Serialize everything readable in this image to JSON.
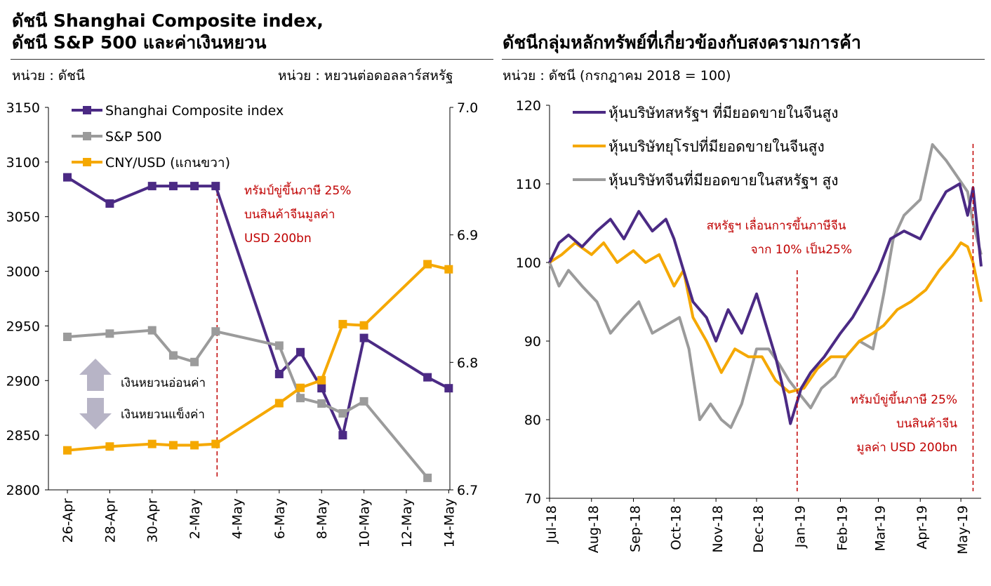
{
  "left_panel": {
    "title_line1": "ดัชนี Shanghai Composite index,",
    "title_line2": "ดัชนี S&P 500 และค่าเงินหยวน",
    "unit_left": "หน่วย : ดัชนี",
    "unit_right": "หน่วย : หยวนต่อดอลลาร์สหรัฐ",
    "annotation_lines": [
      "ทรัมป์ขู่ขึ้นภาษี 25%",
      "บนสินค้าจีนมูลค่า",
      "USD 200bn"
    ],
    "weaken_label": "เงินหยวนอ่อนค่า",
    "strengthen_label": "เงินหยวนแข็งค่า"
  },
  "right_panel": {
    "title": "ดัชนีกลุ่มหลักทรัพย์ที่เกี่ยวข้องกับสงครามการค้า",
    "unit": "หน่วย : ดัชนี (กรกฎาคม 2018 = 100)",
    "annotation1_lines": [
      "สหรัฐฯ เลื่อนการขึ้นภาษีจีน",
      "จาก 10% เป็น25%"
    ],
    "annotation2_lines": [
      "ทรัมป์ขู่ขึ้นภาษี 25%",
      "บนสินค้าจีน",
      "มูลค่า USD 200bn"
    ]
  },
  "colors": {
    "purple": "#4b2a84",
    "gray": "#9b9b9b",
    "orange": "#f5a800",
    "annotation_red": "#c00000",
    "arrow_gray": "#b7b4c6"
  },
  "chart_data": [
    {
      "type": "line",
      "categories": [
        "26-Apr",
        "27-Apr",
        "28-Apr",
        "29-Apr",
        "30-Apr",
        "1-May",
        "2-May",
        "3-May",
        "4-May",
        "5-May",
        "6-May",
        "7-May",
        "8-May",
        "9-May",
        "10-May",
        "11-May",
        "12-May",
        "13-May",
        "14-May"
      ],
      "x_tick_labels": [
        "26-Apr",
        "28-Apr",
        "30-Apr",
        "2-May",
        "4-May",
        "6-May",
        "8-May",
        "10-May",
        "12-May",
        "14-May"
      ],
      "ylim": [
        2800,
        3150
      ],
      "y_ticks": [
        2800,
        2850,
        2900,
        2950,
        3000,
        3050,
        3100,
        3150
      ],
      "y2lim": [
        6.7,
        7.0
      ],
      "y2_ticks": [
        "6.7",
        "6.8",
        "6.9",
        "7.0"
      ],
      "legend_position": "top-left",
      "series": [
        {
          "name": "Shanghai Composite index",
          "axis": "left",
          "color": "#4b2a84",
          "points": [
            [
              "26-Apr",
              3086
            ],
            [
              "28-Apr",
              3062
            ],
            [
              "30-Apr",
              3078
            ],
            [
              "1-May",
              3078
            ],
            [
              "2-May",
              3078
            ],
            [
              "3-May",
              3078
            ],
            [
              "6-May",
              2906
            ],
            [
              "7-May",
              2926
            ],
            [
              "8-May",
              2893
            ],
            [
              "9-May",
              2850
            ],
            [
              "10-May",
              2939
            ],
            [
              "13-May",
              2903
            ],
            [
              "14-May",
              2893
            ]
          ]
        },
        {
          "name": "S&P 500",
          "axis": "left",
          "color": "#9b9b9b",
          "points": [
            [
              "26-Apr",
              2940
            ],
            [
              "28-Apr",
              2943
            ],
            [
              "30-Apr",
              2946
            ],
            [
              "1-May",
              2923
            ],
            [
              "2-May",
              2917
            ],
            [
              "3-May",
              2945
            ],
            [
              "6-May",
              2932
            ],
            [
              "7-May",
              2884
            ],
            [
              "8-May",
              2879
            ],
            [
              "9-May",
              2870
            ],
            [
              "10-May",
              2881
            ],
            [
              "13-May",
              2811
            ]
          ]
        },
        {
          "name": "CNY/USD (แกนขวา)",
          "axis": "right",
          "color": "#f5a800",
          "points": [
            [
              "26-Apr",
              6.731
            ],
            [
              "28-Apr",
              6.734
            ],
            [
              "30-Apr",
              6.736
            ],
            [
              "1-May",
              6.735
            ],
            [
              "2-May",
              6.735
            ],
            [
              "3-May",
              6.736
            ],
            [
              "6-May",
              6.768
            ],
            [
              "7-May",
              6.78
            ],
            [
              "8-May",
              6.786
            ],
            [
              "9-May",
              6.83
            ],
            [
              "10-May",
              6.829
            ],
            [
              "13-May",
              6.877
            ],
            [
              "14-May",
              6.873
            ]
          ]
        }
      ],
      "event_marker": "3-May"
    },
    {
      "type": "line",
      "x_tick_labels": [
        "Jul-18",
        "Aug-18",
        "Sep-18",
        "Oct-18",
        "Nov-18",
        "Dec-18",
        "Jan-19",
        "Feb-19",
        "Mar-19",
        "Apr-19",
        "May-19"
      ],
      "x_range": [
        "2018-07-01",
        "2019-05-16"
      ],
      "ylim": [
        70,
        120
      ],
      "y_ticks": [
        70,
        80,
        90,
        100,
        110,
        120
      ],
      "legend_position": "top-left",
      "series": [
        {
          "name": "หุ้นบริษัทสหรัฐฯ ที่มียอดขายในจีนสูง",
          "color": "#4b2a84",
          "points": [
            [
              "2018-07-01",
              100
            ],
            [
              "2018-07-08",
              102.5
            ],
            [
              "2018-07-15",
              103.5
            ],
            [
              "2018-07-25",
              102
            ],
            [
              "2018-08-05",
              104
            ],
            [
              "2018-08-15",
              105.5
            ],
            [
              "2018-08-25",
              103
            ],
            [
              "2018-09-05",
              106.5
            ],
            [
              "2018-09-15",
              104
            ],
            [
              "2018-09-25",
              105.5
            ],
            [
              "2018-10-01",
              103
            ],
            [
              "2018-10-08",
              99
            ],
            [
              "2018-10-15",
              95
            ],
            [
              "2018-10-25",
              93
            ],
            [
              "2018-11-01",
              90
            ],
            [
              "2018-11-10",
              94
            ],
            [
              "2018-11-20",
              91
            ],
            [
              "2018-12-01",
              96
            ],
            [
              "2018-12-08",
              92
            ],
            [
              "2018-12-15",
              88
            ],
            [
              "2018-12-22",
              83
            ],
            [
              "2018-12-26",
              79.5
            ],
            [
              "2019-01-03",
              84
            ],
            [
              "2019-01-10",
              86
            ],
            [
              "2019-01-20",
              88
            ],
            [
              "2019-02-01",
              91
            ],
            [
              "2019-02-10",
              93
            ],
            [
              "2019-02-20",
              96
            ],
            [
              "2019-03-01",
              99
            ],
            [
              "2019-03-10",
              103
            ],
            [
              "2019-03-20",
              104
            ],
            [
              "2019-04-01",
              103
            ],
            [
              "2019-04-10",
              106
            ],
            [
              "2019-04-20",
              109
            ],
            [
              "2019-04-30",
              110
            ],
            [
              "2019-05-06",
              106
            ],
            [
              "2019-05-10",
              109.5
            ],
            [
              "2019-05-16",
              99.5
            ]
          ]
        },
        {
          "name": "หุ้นบริษัทยุโรปที่มียอดขายในจีนสูง",
          "color": "#f5a800",
          "points": [
            [
              "2018-07-01",
              100
            ],
            [
              "2018-07-10",
              101
            ],
            [
              "2018-07-20",
              102.5
            ],
            [
              "2018-08-01",
              101
            ],
            [
              "2018-08-10",
              102.5
            ],
            [
              "2018-08-20",
              100
            ],
            [
              "2018-09-01",
              101.5
            ],
            [
              "2018-09-10",
              100
            ],
            [
              "2018-09-20",
              101
            ],
            [
              "2018-10-01",
              97
            ],
            [
              "2018-10-08",
              99
            ],
            [
              "2018-10-15",
              93
            ],
            [
              "2018-10-25",
              90
            ],
            [
              "2018-11-05",
              86
            ],
            [
              "2018-11-15",
              89
            ],
            [
              "2018-11-25",
              88
            ],
            [
              "2018-12-05",
              88
            ],
            [
              "2018-12-15",
              85
            ],
            [
              "2018-12-25",
              83.5
            ],
            [
              "2019-01-05",
              84
            ],
            [
              "2019-01-15",
              86.5
            ],
            [
              "2019-01-25",
              88
            ],
            [
              "2019-02-05",
              88
            ],
            [
              "2019-02-15",
              90
            ],
            [
              "2019-02-25",
              91
            ],
            [
              "2019-03-05",
              92
            ],
            [
              "2019-03-15",
              94
            ],
            [
              "2019-03-25",
              95
            ],
            [
              "2019-04-05",
              96.5
            ],
            [
              "2019-04-15",
              99
            ],
            [
              "2019-04-25",
              101
            ],
            [
              "2019-05-01",
              102.5
            ],
            [
              "2019-05-06",
              102
            ],
            [
              "2019-05-10",
              100
            ],
            [
              "2019-05-16",
              95
            ]
          ]
        },
        {
          "name": "หุ้นบริษัทจีนที่มียอดขายในสหรัฐฯ สูง",
          "color": "#9b9b9b",
          "points": [
            [
              "2018-07-01",
              100
            ],
            [
              "2018-07-08",
              97
            ],
            [
              "2018-07-15",
              99
            ],
            [
              "2018-07-25",
              97
            ],
            [
              "2018-08-05",
              95
            ],
            [
              "2018-08-15",
              91
            ],
            [
              "2018-08-25",
              93
            ],
            [
              "2018-09-05",
              95
            ],
            [
              "2018-09-15",
              91
            ],
            [
              "2018-09-25",
              92
            ],
            [
              "2018-10-05",
              93
            ],
            [
              "2018-10-12",
              89
            ],
            [
              "2018-10-20",
              80
            ],
            [
              "2018-10-28",
              82
            ],
            [
              "2018-11-05",
              80
            ],
            [
              "2018-11-12",
              79
            ],
            [
              "2018-11-20",
              82
            ],
            [
              "2018-12-01",
              89
            ],
            [
              "2018-12-10",
              89
            ],
            [
              "2018-12-18",
              87
            ],
            [
              "2018-12-25",
              85
            ],
            [
              "2019-01-03",
              83
            ],
            [
              "2019-01-10",
              81.5
            ],
            [
              "2019-01-18",
              84
            ],
            [
              "2019-01-28",
              85.5
            ],
            [
              "2019-02-05",
              88
            ],
            [
              "2019-02-15",
              90
            ],
            [
              "2019-02-25",
              89
            ],
            [
              "2019-03-05",
              96
            ],
            [
              "2019-03-12",
              103
            ],
            [
              "2019-03-20",
              106
            ],
            [
              "2019-04-01",
              108
            ],
            [
              "2019-04-10",
              115
            ],
            [
              "2019-04-20",
              113
            ],
            [
              "2019-04-28",
              111
            ],
            [
              "2019-05-06",
              109
            ],
            [
              "2019-05-10",
              105
            ],
            [
              "2019-05-16",
              101
            ]
          ]
        }
      ],
      "event_markers": [
        "2018-12-31",
        "2019-05-10"
      ]
    }
  ]
}
